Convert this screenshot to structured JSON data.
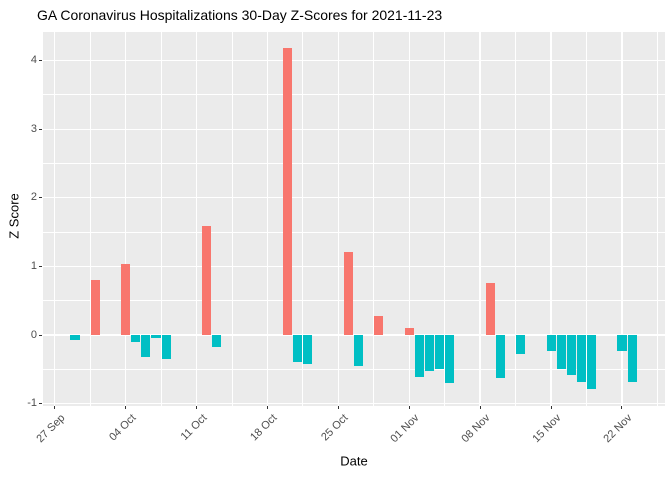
{
  "chart_data": {
    "type": "bar",
    "title": "GA Coronavirus Hospitalizations 30-Day Z-Scores for 2021-11-23",
    "xlabel": "Date",
    "ylabel": "Z Score",
    "legend": false,
    "grid": true,
    "panel_bg": "#EBEBEB",
    "grid_color": "#FFFFFF",
    "tick_text_color": "#4D4D4D",
    "positive_color": "#F8766D",
    "negative_color": "#00BFC4",
    "y_ticks": [
      -1,
      0,
      1,
      2,
      3,
      4
    ],
    "ylim": [
      -1.04,
      4.42
    ],
    "x_tick_labels": [
      "27 Sep",
      "04 Oct",
      "11 Oct",
      "18 Oct",
      "25 Oct",
      "01 Nov",
      "08 Nov",
      "15 Nov",
      "22 Nov"
    ],
    "x_tick_day_offsets": [
      0,
      7,
      14,
      21,
      28,
      35,
      42,
      49,
      56
    ],
    "day_offset_reference": "2021-09-27",
    "xlim_day_offsets": [
      -1.2,
      60.2
    ],
    "bars": [
      {
        "date": "2021-09-29",
        "day_offset": 2,
        "z": -0.08
      },
      {
        "date": "2021-10-01",
        "day_offset": 4,
        "z": 0.8
      },
      {
        "date": "2021-10-04",
        "day_offset": 7,
        "z": 1.03
      },
      {
        "date": "2021-10-05",
        "day_offset": 8,
        "z": -0.1
      },
      {
        "date": "2021-10-06",
        "day_offset": 9,
        "z": -0.32
      },
      {
        "date": "2021-10-07",
        "day_offset": 10,
        "z": -0.04
      },
      {
        "date": "2021-10-08",
        "day_offset": 11,
        "z": -0.35
      },
      {
        "date": "2021-10-12",
        "day_offset": 15,
        "z": 1.59
      },
      {
        "date": "2021-10-13",
        "day_offset": 16,
        "z": -0.18
      },
      {
        "date": "2021-10-20",
        "day_offset": 23,
        "z": 4.18
      },
      {
        "date": "2021-10-21",
        "day_offset": 24,
        "z": -0.39
      },
      {
        "date": "2021-10-22",
        "day_offset": 25,
        "z": -0.42
      },
      {
        "date": "2021-10-26",
        "day_offset": 29,
        "z": 1.21
      },
      {
        "date": "2021-10-27",
        "day_offset": 30,
        "z": -0.45
      },
      {
        "date": "2021-10-29",
        "day_offset": 32,
        "z": 0.28
      },
      {
        "date": "2021-11-01",
        "day_offset": 35,
        "z": 0.1
      },
      {
        "date": "2021-11-02",
        "day_offset": 36,
        "z": -0.61
      },
      {
        "date": "2021-11-03",
        "day_offset": 37,
        "z": -0.52
      },
      {
        "date": "2021-11-04",
        "day_offset": 38,
        "z": -0.5
      },
      {
        "date": "2021-11-05",
        "day_offset": 39,
        "z": -0.7
      },
      {
        "date": "2021-11-09",
        "day_offset": 43,
        "z": 0.76
      },
      {
        "date": "2021-11-10",
        "day_offset": 44,
        "z": -0.63
      },
      {
        "date": "2021-11-12",
        "day_offset": 46,
        "z": -0.28
      },
      {
        "date": "2021-11-15",
        "day_offset": 49,
        "z": -0.24
      },
      {
        "date": "2021-11-16",
        "day_offset": 50,
        "z": -0.5
      },
      {
        "date": "2021-11-17",
        "day_offset": 51,
        "z": -0.58
      },
      {
        "date": "2021-11-18",
        "day_offset": 52,
        "z": -0.68
      },
      {
        "date": "2021-11-19",
        "day_offset": 53,
        "z": -0.79
      },
      {
        "date": "2021-11-22",
        "day_offset": 56,
        "z": -0.23
      },
      {
        "date": "2021-11-23",
        "day_offset": 57,
        "z": -0.68
      }
    ]
  }
}
